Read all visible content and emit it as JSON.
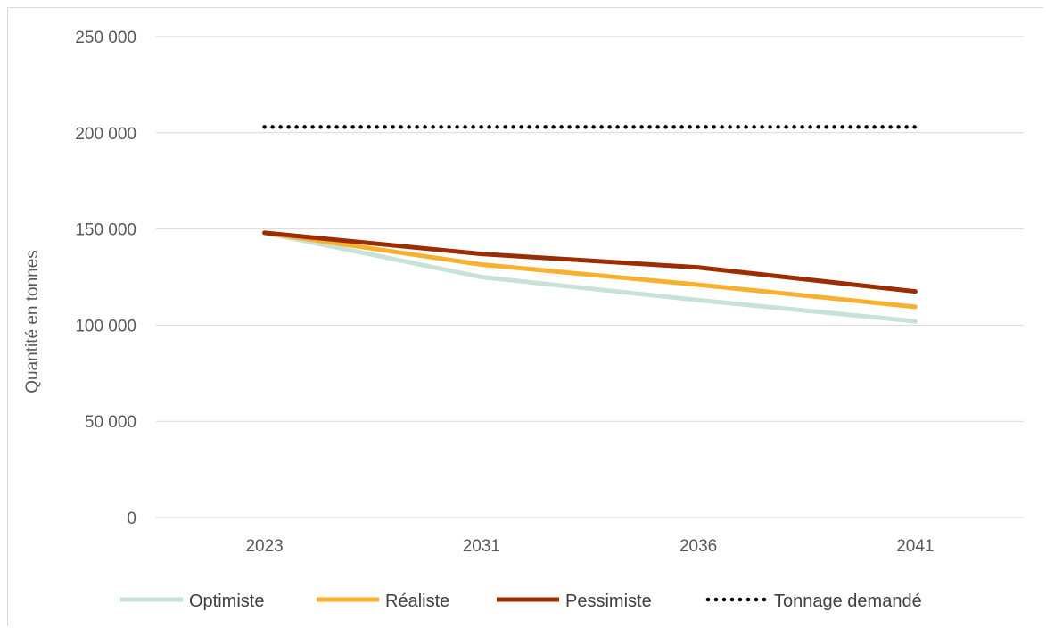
{
  "chart_data": {
    "type": "line",
    "title": "",
    "xlabel": "",
    "ylabel": "Quantité en tonnes",
    "categories": [
      "2023",
      "2031",
      "2036",
      "2041"
    ],
    "ylim": [
      0,
      250000
    ],
    "yticks": [
      0,
      50000,
      100000,
      150000,
      200000,
      250000
    ],
    "ytick_labels": [
      "0",
      "50 000",
      "100 000",
      "150 000",
      "200 000",
      "250 000"
    ],
    "grid": "horizontal",
    "legend_position": "bottom",
    "series": [
      {
        "name": "Optimiste",
        "color": "#c8e2d6",
        "style": "solid",
        "values": [
          148000,
          125000,
          113000,
          102000
        ]
      },
      {
        "name": "Réaliste",
        "color": "#f7b12e",
        "style": "solid",
        "values": [
          148000,
          131500,
          121000,
          109500
        ]
      },
      {
        "name": "Pessimiste",
        "color": "#9c2d03",
        "style": "solid",
        "values": [
          148000,
          137000,
          130000,
          117500
        ]
      },
      {
        "name": "Tonnage demandé",
        "color": "#000000",
        "style": "dotted",
        "values": [
          203000,
          203000,
          203000,
          203000
        ]
      }
    ]
  }
}
